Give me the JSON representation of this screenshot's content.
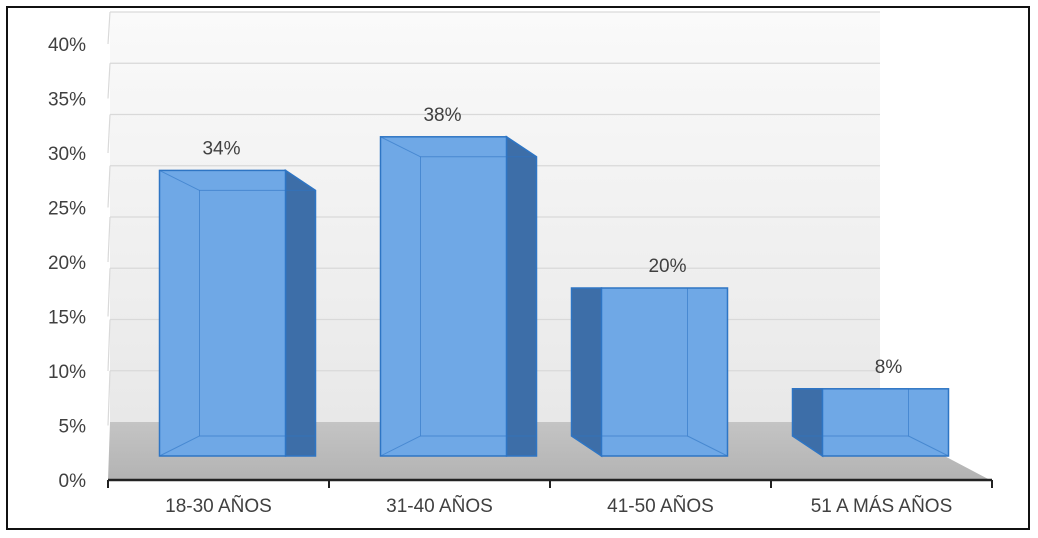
{
  "chart_data": {
    "type": "bar",
    "categories": [
      "18-30 AÑOS",
      "31-40 AÑOS",
      "41-50 AÑOS",
      "51 A MÁS AÑOS"
    ],
    "values": [
      34,
      38,
      20,
      8
    ],
    "data_labels": [
      "34%",
      "38%",
      "20%",
      "8%"
    ],
    "y_ticks": [
      "0%",
      "5%",
      "10%",
      "15%",
      "20%",
      "25%",
      "30%",
      "35%",
      "40%"
    ],
    "ylim": [
      0,
      40
    ],
    "grid": true,
    "style": "3d-column",
    "colors": {
      "bar_face": "#6fa8e6",
      "bar_side": "#3d6ea8",
      "bar_top": "#8fbdf0",
      "bar_edge": "#2e75c4",
      "floor": "#bdbdbd",
      "wall": "#f3f3f3",
      "grid": "#d9d9d9",
      "text": "#404040"
    }
  }
}
